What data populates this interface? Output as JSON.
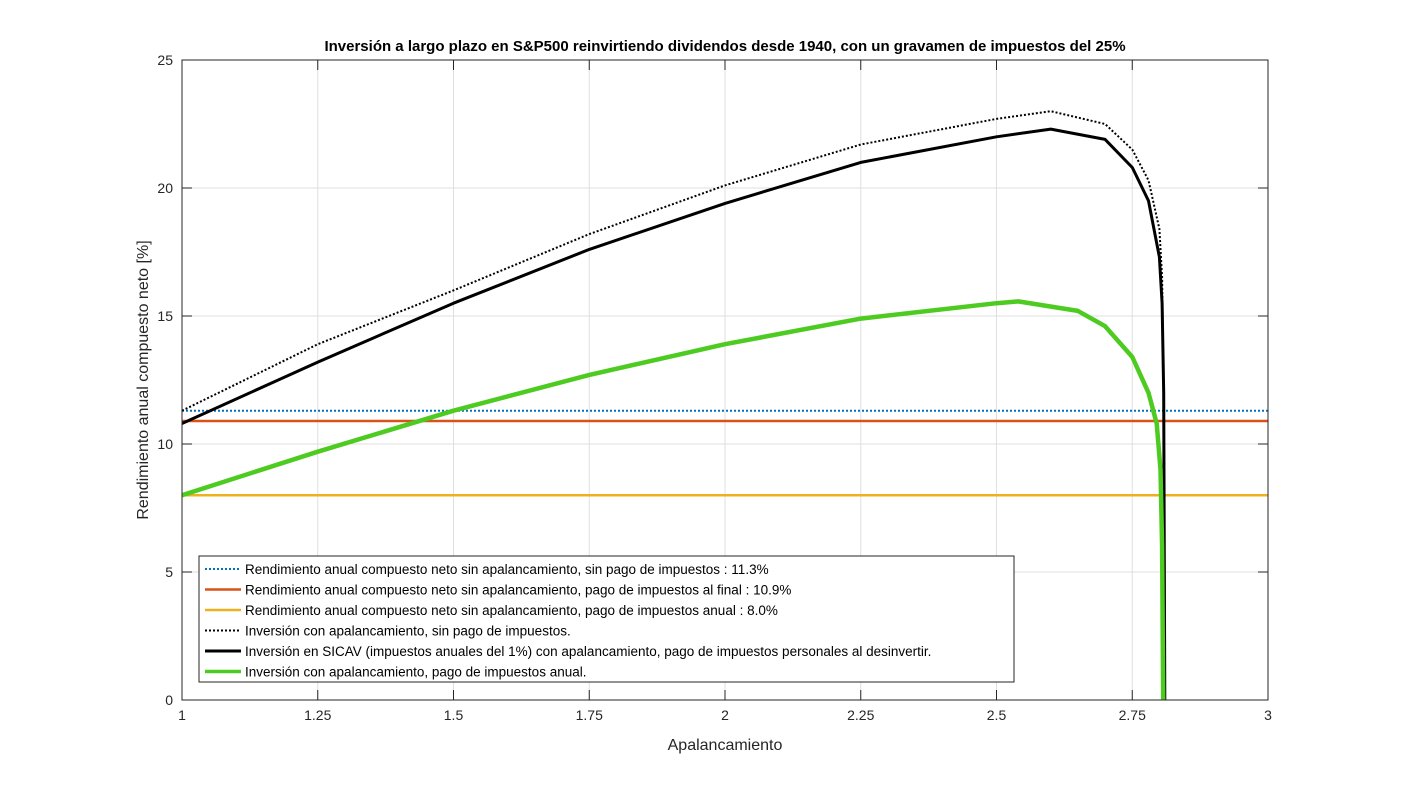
{
  "chart_data": {
    "type": "line",
    "title": "Inversión a largo plazo en S&P500 reinvirtiendo dividendos desde 1940, con un gravamen de impuestos del 25%",
    "xlabel": "Apalancamiento",
    "ylabel": "Rendimiento anual compuesto neto [%]",
    "xlim": [
      1,
      3
    ],
    "ylim": [
      0,
      25
    ],
    "xticks": [
      1,
      1.25,
      1.5,
      1.75,
      2,
      2.25,
      2.5,
      2.75,
      3
    ],
    "xtick_labels": [
      "1",
      "1.25",
      "1.5",
      "1.75",
      "2",
      "2.25",
      "2.5",
      "2.75",
      "3"
    ],
    "yticks": [
      0,
      5,
      10,
      15,
      20,
      25
    ],
    "ytick_labels": [
      "0",
      "5",
      "10",
      "15",
      "20",
      "25"
    ],
    "grid": true,
    "legend_position": "bottom-left",
    "series": [
      {
        "name": "Rendimiento anual compuesto neto sin apalancamiento, sin pago de impuestos : 11.3%",
        "color": "#0072BD",
        "style": "dotted",
        "width": 2,
        "x": [
          1,
          3
        ],
        "y": [
          11.3,
          11.3
        ]
      },
      {
        "name": "Rendimiento anual compuesto neto sin apalancamiento, pago de impuestos al final : 10.9%",
        "color": "#D95319",
        "style": "solid",
        "width": 2.5,
        "x": [
          1,
          3
        ],
        "y": [
          10.9,
          10.9
        ]
      },
      {
        "name": "Rendimiento anual compuesto neto sin apalancamiento, pago de impuestos anual : 8.0%",
        "color": "#EDB120",
        "style": "solid",
        "width": 2.5,
        "x": [
          1,
          3
        ],
        "y": [
          8.0,
          8.0
        ]
      },
      {
        "name": "Inversión con apalancamiento, sin pago de impuestos.",
        "color": "#000000",
        "style": "dotted",
        "width": 2,
        "x": [
          1,
          1.25,
          1.5,
          1.75,
          2,
          2.25,
          2.5,
          2.6,
          2.7,
          2.75,
          2.78,
          2.8,
          2.805,
          2.808,
          2.81
        ],
        "y": [
          11.3,
          13.9,
          16.0,
          18.2,
          20.1,
          21.7,
          22.7,
          23.0,
          22.5,
          21.5,
          20.3,
          18.4,
          16.5,
          12,
          0
        ]
      },
      {
        "name": "Inversión en SICAV (impuestos anuales del 1%) con apalancamiento, pago de impuestos personales al desinvertir.",
        "color": "#000000",
        "style": "solid",
        "width": 3,
        "x": [
          1,
          1.25,
          1.5,
          1.75,
          2,
          2.25,
          2.5,
          2.6,
          2.7,
          2.75,
          2.78,
          2.8,
          2.805,
          2.808,
          2.81
        ],
        "y": [
          10.8,
          13.2,
          15.5,
          17.6,
          19.4,
          21.0,
          22.0,
          22.3,
          21.9,
          20.8,
          19.5,
          17.3,
          15.5,
          12,
          0
        ]
      },
      {
        "name": "Inversión con apalancamiento, pago de impuestos anual.",
        "color": "#4DCB20",
        "style": "solid",
        "width": 4.5,
        "x": [
          1,
          1.25,
          1.5,
          1.75,
          2,
          2.25,
          2.5,
          2.54,
          2.65,
          2.7,
          2.75,
          2.78,
          2.795,
          2.802,
          2.805,
          2.807
        ],
        "y": [
          8.0,
          9.7,
          11.3,
          12.7,
          13.9,
          14.9,
          15.5,
          15.57,
          15.2,
          14.6,
          13.4,
          12.0,
          10.8,
          9,
          6,
          0
        ]
      }
    ]
  }
}
